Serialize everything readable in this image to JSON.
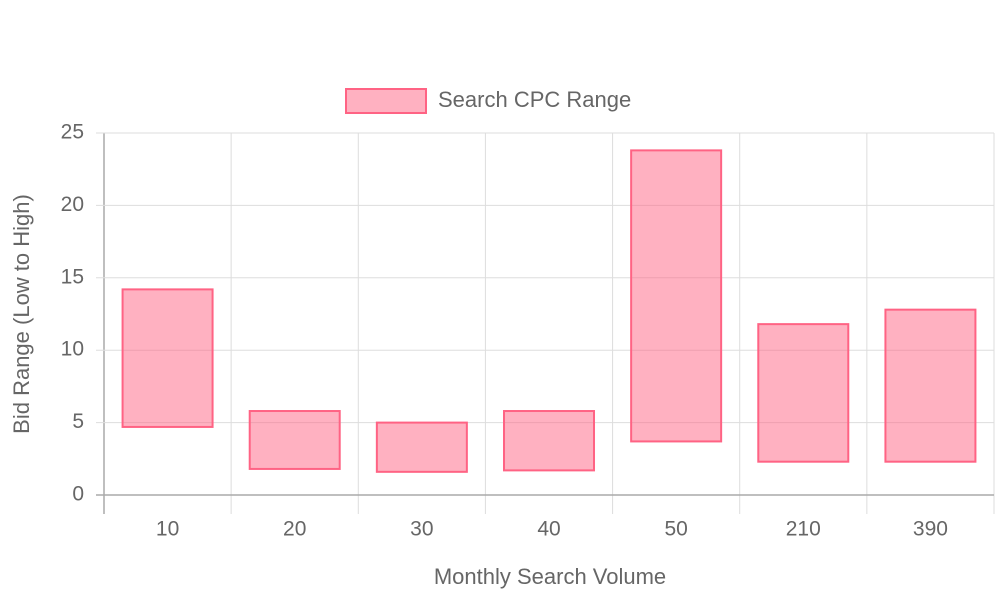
{
  "chart_data": {
    "type": "floating-bar",
    "xlabel": "Monthly Search Volume",
    "ylabel": "Bid Range (Low to High)",
    "categories": [
      "10",
      "20",
      "30",
      "40",
      "50",
      "210",
      "390"
    ],
    "series": [
      {
        "name": "Search CPC Range",
        "color": "#ff6384",
        "values": [
          [
            4.7,
            14.2
          ],
          [
            1.8,
            5.8
          ],
          [
            1.6,
            5.0
          ],
          [
            1.7,
            5.8
          ],
          [
            3.7,
            23.8
          ],
          [
            2.3,
            11.8
          ],
          [
            2.3,
            12.8
          ]
        ]
      }
    ],
    "ylim": [
      0,
      25
    ],
    "yticks": [
      0,
      5,
      10,
      15,
      20,
      25
    ],
    "grid": true,
    "legend": "top"
  }
}
